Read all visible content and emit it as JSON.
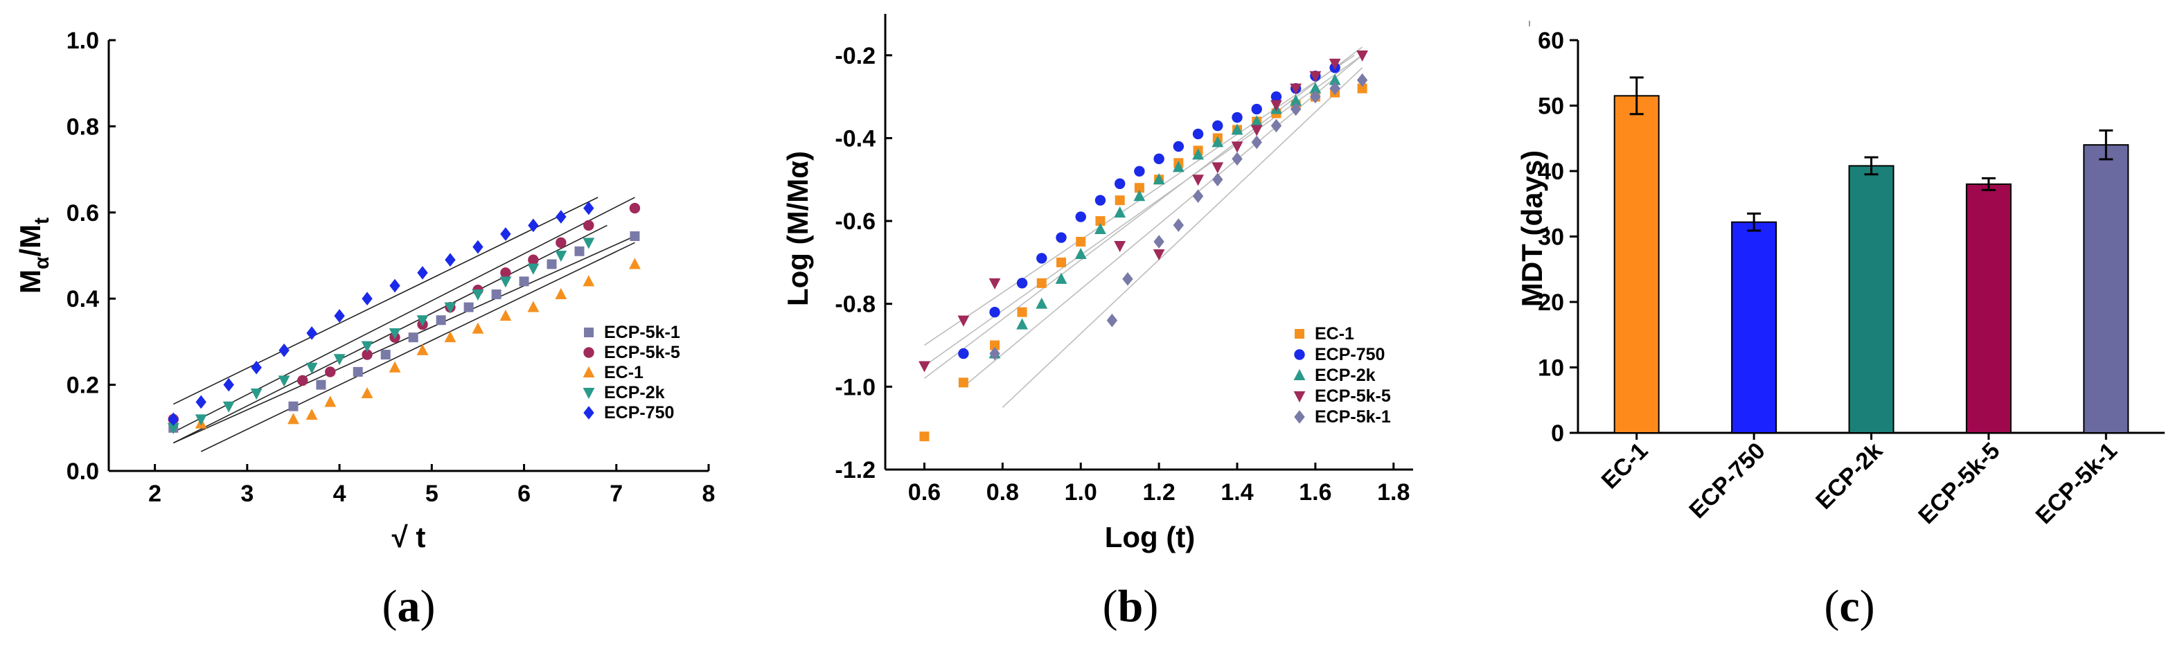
{
  "figure": {
    "panels": [
      {
        "letter": "a"
      },
      {
        "letter": "b"
      },
      {
        "letter": "c"
      }
    ]
  },
  "chart_data": [
    {
      "id": "a",
      "type": "scatter",
      "title": "",
      "xlabel": "√ t",
      "ylabel_main": "M",
      "ylabel_sub1": "α",
      "ylabel_mid": "/M",
      "ylabel_sub2": "t",
      "xlim": [
        1.5,
        8
      ],
      "ylim": [
        0.0,
        1.0
      ],
      "xticks": [
        2,
        3,
        4,
        5,
        6,
        7,
        8
      ],
      "yticks": [
        0.0,
        0.2,
        0.4,
        0.6,
        0.8,
        1.0
      ],
      "fit_lines": [
        {
          "series": "ECP-750",
          "x": [
            2.2,
            6.8
          ],
          "y": [
            0.155,
            0.635
          ]
        },
        {
          "series": "ECP-5k-5",
          "x": [
            2.2,
            7.2
          ],
          "y": [
            0.09,
            0.635
          ]
        },
        {
          "series": "ECP-2k",
          "x": [
            2.2,
            6.9
          ],
          "y": [
            0.065,
            0.57
          ]
        },
        {
          "series": "ECP-5k-1",
          "x": [
            2.2,
            7.2
          ],
          "y": [
            0.065,
            0.545
          ]
        },
        {
          "series": "EC-1",
          "x": [
            2.5,
            7.2
          ],
          "y": [
            0.045,
            0.53
          ]
        }
      ],
      "series": [
        {
          "name": "ECP-5k-1",
          "color": "#7a7aa8",
          "marker": "square",
          "x": [
            2.2,
            3.5,
            3.8,
            4.2,
            4.5,
            4.8,
            5.1,
            5.4,
            5.7,
            6.0,
            6.3,
            6.6,
            7.2
          ],
          "y": [
            0.1,
            0.15,
            0.2,
            0.23,
            0.27,
            0.31,
            0.35,
            0.38,
            0.41,
            0.44,
            0.48,
            0.51,
            0.545
          ]
        },
        {
          "name": "ECP-5k-5",
          "color": "#a02a5a",
          "marker": "circle",
          "x": [
            2.2,
            3.6,
            3.9,
            4.3,
            4.6,
            4.9,
            5.2,
            5.5,
            5.8,
            6.1,
            6.4,
            6.7,
            7.2
          ],
          "y": [
            0.12,
            0.21,
            0.23,
            0.27,
            0.31,
            0.34,
            0.38,
            0.42,
            0.46,
            0.49,
            0.53,
            0.57,
            0.61
          ]
        },
        {
          "name": "EC-1",
          "color": "#f5901e",
          "marker": "triangle-up",
          "x": [
            2.5,
            3.5,
            3.7,
            3.9,
            4.3,
            4.6,
            4.9,
            5.2,
            5.5,
            5.8,
            6.1,
            6.4,
            6.7,
            7.2
          ],
          "y": [
            0.11,
            0.12,
            0.13,
            0.16,
            0.18,
            0.24,
            0.28,
            0.31,
            0.33,
            0.36,
            0.38,
            0.41,
            0.44,
            0.48
          ]
        },
        {
          "name": "ECP-2k",
          "color": "#2a9a8a",
          "marker": "triangle-down",
          "x": [
            2.2,
            2.5,
            2.8,
            3.1,
            3.4,
            3.7,
            4.0,
            4.3,
            4.6,
            4.9,
            5.2,
            5.5,
            5.8,
            6.1,
            6.4,
            6.7
          ],
          "y": [
            0.1,
            0.12,
            0.15,
            0.18,
            0.21,
            0.24,
            0.26,
            0.29,
            0.32,
            0.35,
            0.38,
            0.41,
            0.44,
            0.47,
            0.5,
            0.53
          ]
        },
        {
          "name": "ECP-750",
          "color": "#1a2ae8",
          "marker": "diamond",
          "x": [
            2.2,
            2.5,
            2.8,
            3.1,
            3.4,
            3.7,
            4.0,
            4.3,
            4.6,
            4.9,
            5.2,
            5.5,
            5.8,
            6.1,
            6.4,
            6.7
          ],
          "y": [
            0.12,
            0.16,
            0.2,
            0.24,
            0.28,
            0.32,
            0.36,
            0.4,
            0.43,
            0.46,
            0.49,
            0.52,
            0.55,
            0.57,
            0.59,
            0.61
          ]
        }
      ]
    },
    {
      "id": "b",
      "type": "scatter",
      "title": "",
      "xlabel": "Log (t)",
      "ylabel": "Log (M/Mα)",
      "xlim": [
        0.5,
        1.85
      ],
      "ylim": [
        -1.2,
        -0.1
      ],
      "xticks": [
        0.6,
        0.8,
        1.0,
        1.2,
        1.4,
        1.6,
        1.8
      ],
      "yticks": [
        -1.2,
        -1.0,
        -0.8,
        -0.6,
        -0.4,
        -0.2
      ],
      "fit_lines": [
        {
          "series": "EC-1",
          "x": [
            0.7,
            1.72
          ],
          "y": [
            -1.0,
            -0.2
          ]
        },
        {
          "series": "ECP-750",
          "x": [
            0.6,
            1.7
          ],
          "y": [
            -0.9,
            -0.2
          ]
        },
        {
          "series": "ECP-2k",
          "x": [
            0.6,
            1.72
          ],
          "y": [
            -0.98,
            -0.18
          ]
        },
        {
          "series": "ECP-5k-5",
          "x": [
            0.6,
            1.72
          ],
          "y": [
            -0.95,
            -0.2
          ]
        },
        {
          "series": "ECP-5k-1",
          "x": [
            0.8,
            1.72
          ],
          "y": [
            -1.05,
            -0.23
          ]
        }
      ],
      "series": [
        {
          "name": "EC-1",
          "color": "#f5901e",
          "marker": "square",
          "x": [
            0.6,
            0.7,
            0.78,
            0.85,
            0.9,
            0.95,
            1.0,
            1.05,
            1.1,
            1.15,
            1.2,
            1.25,
            1.3,
            1.35,
            1.4,
            1.45,
            1.5,
            1.55,
            1.6,
            1.65,
            1.72
          ],
          "y": [
            -1.12,
            -0.99,
            -0.9,
            -0.82,
            -0.75,
            -0.7,
            -0.65,
            -0.6,
            -0.55,
            -0.52,
            -0.5,
            -0.46,
            -0.43,
            -0.4,
            -0.38,
            -0.36,
            -0.34,
            -0.32,
            -0.3,
            -0.29,
            -0.28
          ]
        },
        {
          "name": "ECP-750",
          "color": "#1a2ae8",
          "marker": "circle",
          "x": [
            0.7,
            0.78,
            0.85,
            0.9,
            0.95,
            1.0,
            1.05,
            1.1,
            1.15,
            1.2,
            1.25,
            1.3,
            1.35,
            1.4,
            1.45,
            1.5,
            1.55,
            1.6,
            1.65
          ],
          "y": [
            -0.92,
            -0.82,
            -0.75,
            -0.69,
            -0.64,
            -0.59,
            -0.55,
            -0.51,
            -0.48,
            -0.45,
            -0.42,
            -0.39,
            -0.37,
            -0.35,
            -0.33,
            -0.3,
            -0.28,
            -0.25,
            -0.23
          ]
        },
        {
          "name": "ECP-2k",
          "color": "#2a9a8a",
          "marker": "triangle-up",
          "x": [
            0.78,
            0.85,
            0.9,
            0.95,
            1.0,
            1.05,
            1.1,
            1.15,
            1.2,
            1.25,
            1.3,
            1.35,
            1.4,
            1.45,
            1.5,
            1.55,
            1.6,
            1.65
          ],
          "y": [
            -0.92,
            -0.85,
            -0.8,
            -0.74,
            -0.68,
            -0.62,
            -0.58,
            -0.54,
            -0.5,
            -0.47,
            -0.44,
            -0.41,
            -0.38,
            -0.36,
            -0.33,
            -0.31,
            -0.28,
            -0.26
          ]
        },
        {
          "name": "ECP-5k-5",
          "color": "#a02a5a",
          "marker": "triangle-down",
          "x": [
            0.6,
            0.7,
            0.78,
            1.1,
            1.2,
            1.3,
            1.35,
            1.4,
            1.45,
            1.5,
            1.55,
            1.6,
            1.65,
            1.72
          ],
          "y": [
            -0.95,
            -0.84,
            -0.75,
            -0.66,
            -0.68,
            -0.5,
            -0.47,
            -0.42,
            -0.38,
            -0.32,
            -0.28,
            -0.25,
            -0.22,
            -0.2
          ]
        },
        {
          "name": "ECP-5k-1",
          "color": "#7a7aa8",
          "marker": "diamond",
          "x": [
            0.78,
            1.08,
            1.12,
            1.2,
            1.25,
            1.3,
            1.35,
            1.4,
            1.45,
            1.5,
            1.55,
            1.6,
            1.65,
            1.72
          ],
          "y": [
            -0.92,
            -0.84,
            -0.74,
            -0.65,
            -0.61,
            -0.54,
            -0.5,
            -0.45,
            -0.41,
            -0.37,
            -0.33,
            -0.3,
            -0.28,
            -0.26
          ]
        }
      ]
    },
    {
      "id": "c",
      "type": "bar",
      "title": "",
      "xlabel": "",
      "ylabel": "MDT (days)",
      "ylim": [
        0,
        60
      ],
      "yticks": [
        0,
        10,
        20,
        30,
        40,
        50,
        60
      ],
      "categories": [
        "EC-1",
        "ECP-750",
        "ECP-2k",
        "ECP-5k-5",
        "ECP-5k-1"
      ],
      "values": [
        51.5,
        32.2,
        40.8,
        38.0,
        44.0
      ],
      "errors": [
        2.8,
        1.3,
        1.3,
        0.9,
        2.2
      ],
      "colors": [
        "#ff8a1c",
        "#1a22ff",
        "#1a8078",
        "#a0084e",
        "#6a6aa0"
      ]
    }
  ]
}
